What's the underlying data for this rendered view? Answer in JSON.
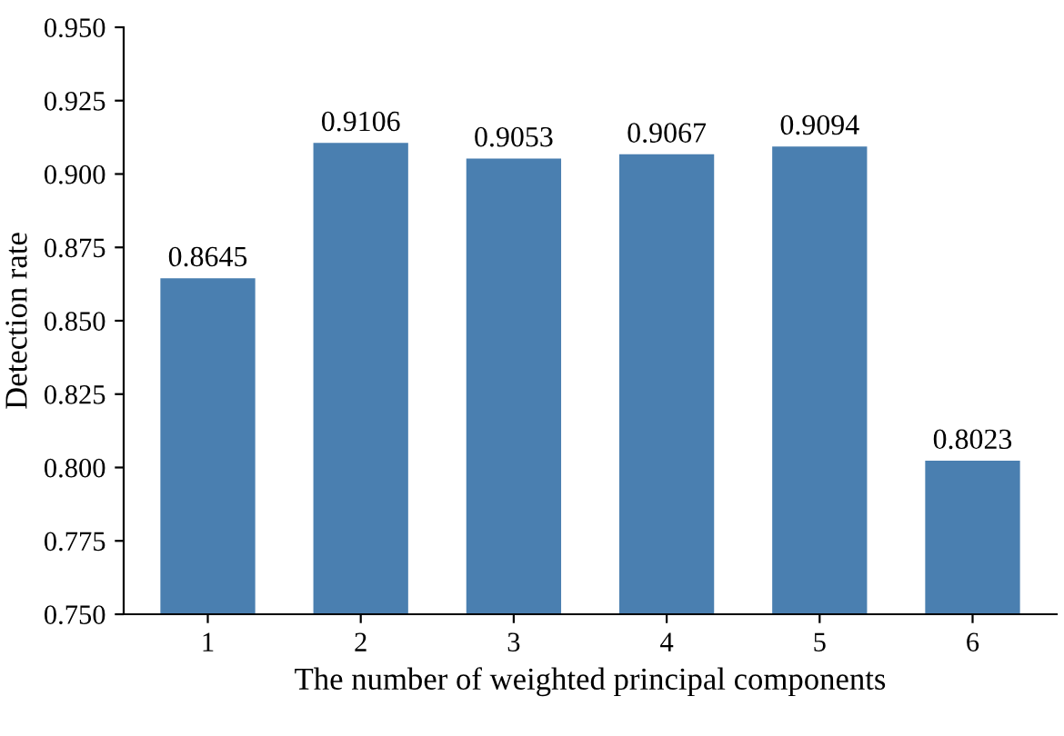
{
  "chart_data": {
    "type": "bar",
    "xlabel": "The number of weighted principal components",
    "ylabel": "Detection rate",
    "categories": [
      "1",
      "2",
      "3",
      "4",
      "5",
      "6"
    ],
    "values": [
      0.8645,
      0.9106,
      0.9053,
      0.9067,
      0.9094,
      0.8023
    ],
    "color": "#4a7fb0",
    "data_labels": true,
    "ylim": [
      0.75,
      0.95
    ],
    "yticks": [
      {
        "value": 0.75,
        "label": "0.750"
      },
      {
        "value": 0.775,
        "label": "0.775"
      },
      {
        "value": 0.8,
        "label": "0.800"
      },
      {
        "value": 0.825,
        "label": "0.825"
      },
      {
        "value": 0.85,
        "label": "0.850"
      },
      {
        "value": 0.875,
        "label": "0.875"
      },
      {
        "value": 0.9,
        "label": "0.900"
      },
      {
        "value": 0.925,
        "label": "0.925"
      },
      {
        "value": 0.95,
        "label": "0.950"
      }
    ],
    "grid": false,
    "legend": false
  }
}
